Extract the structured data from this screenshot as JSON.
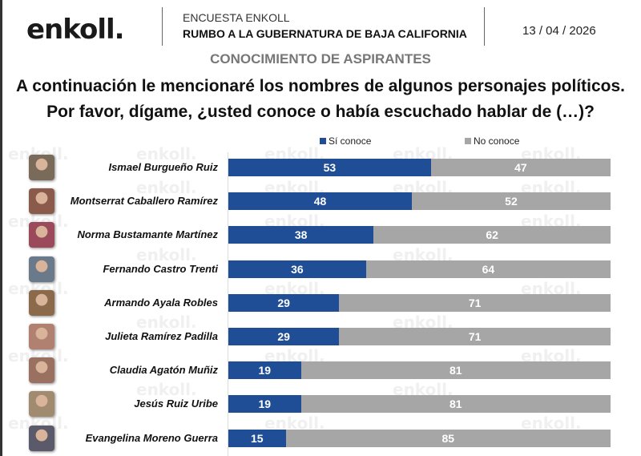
{
  "header": {
    "logo": "enkoll.",
    "survey": "ENCUESTA ENKOLL",
    "title": "RUMBO A LA GUBERNATURA DE BAJA CALIFORNIA",
    "date": "13 / 04 / 2026"
  },
  "section": "CONOCIMIENTO DE ASPIRANTES",
  "question": [
    "A continuación le mencionaré los nombres de algunos personajes políticos.",
    "Por favor, dígame, ¿usted conoce o había escuchado hablar de (…)?"
  ],
  "watermark": "enkoll.",
  "chart_data": {
    "type": "bar",
    "orientation": "horizontal",
    "stacked": true,
    "xlim": [
      0,
      100
    ],
    "legend_position": "top",
    "categories": [
      "Ismael Burgueño Ruiz",
      "Montserrat Caballero Ramírez",
      "Norma Bustamante Martínez",
      "Fernando Castro Trenti",
      "Armando Ayala Robles",
      "Julieta Ramírez Padilla",
      "Claudia Agatón Muñiz",
      "Jesús Ruiz Uribe",
      "Evangelina Moreno Guerra"
    ],
    "series": [
      {
        "name": "Sí conoce",
        "color": "#1f4e96",
        "values": [
          53,
          48,
          38,
          36,
          29,
          29,
          19,
          19,
          15
        ]
      },
      {
        "name": "No conoce",
        "color": "#a6a6a6",
        "values": [
          47,
          52,
          62,
          64,
          71,
          71,
          81,
          81,
          85
        ]
      }
    ]
  }
}
